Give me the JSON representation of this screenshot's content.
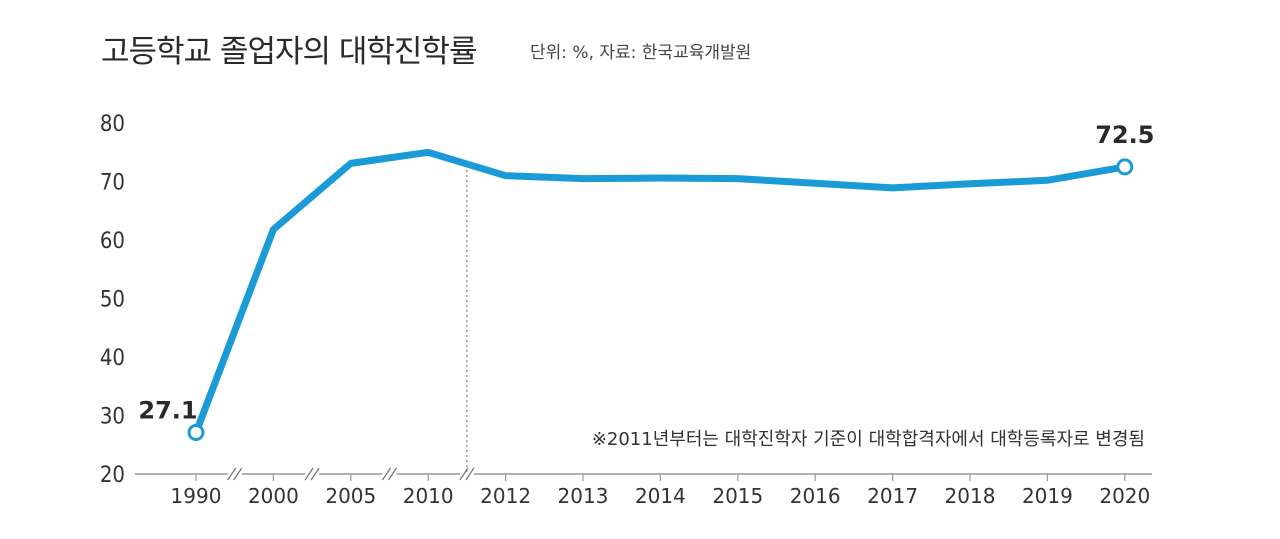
{
  "chart_data": {
    "type": "line",
    "title": "고등학교 졸업자의 대학진학률",
    "subtitle": "단위: %, 자료: 한국교육개발원",
    "categories": [
      "1990",
      "2000",
      "2005",
      "2010",
      "2012",
      "2013",
      "2014",
      "2015",
      "2016",
      "2017",
      "2018",
      "2019",
      "2020"
    ],
    "series": [
      {
        "values": [
          27.1,
          61.8,
          73.1,
          75.0,
          71.0,
          70.5,
          70.6,
          70.5,
          69.7,
          68.9,
          69.6,
          70.2,
          72.5
        ]
      }
    ],
    "ylim": [
      20,
      80
    ],
    "yticks": [
      20,
      30,
      40,
      50,
      60,
      70,
      80
    ],
    "data_labels": [
      {
        "index": 0,
        "text": "27.1"
      },
      {
        "index": 12,
        "text": "72.5"
      }
    ],
    "axis_breaks_after": [
      "1990",
      "2000",
      "2005",
      "2010"
    ],
    "divider_between": [
      "2010",
      "2012"
    ],
    "annotation": "※2011년부터는 대학진학자 기준이 대학합격자에서 대학등록자로 변경됨",
    "line_color": "#1a9ad6",
    "grid": false
  }
}
